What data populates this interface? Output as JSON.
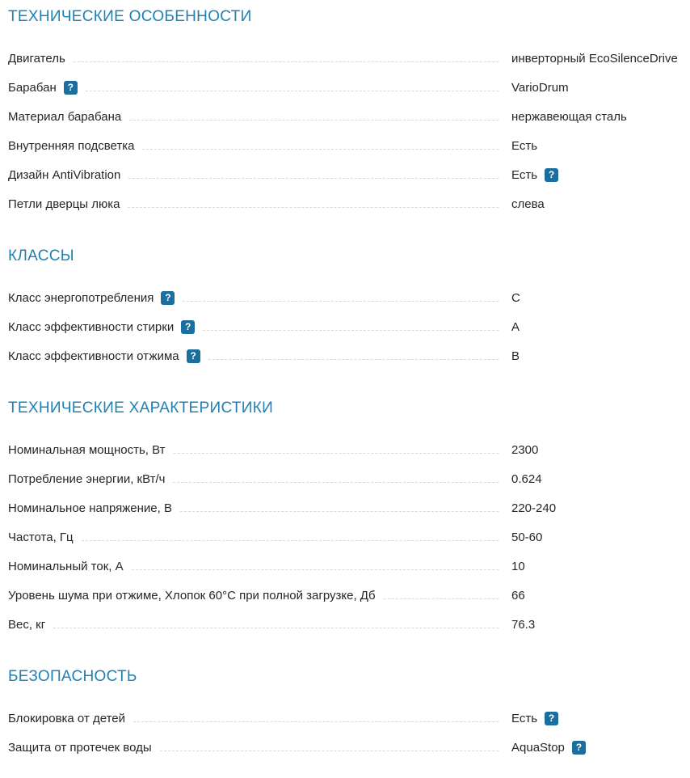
{
  "help_glyph": "?",
  "colors": {
    "heading_blue": "#2080b4",
    "help_icon_bg": "#1a6f9f",
    "text": "#262626",
    "leader_dash": "#d8d8d8"
  },
  "sections": [
    {
      "title": "ТЕХНИЧЕСКИЕ ОСОБЕННОСТИ",
      "rows": [
        {
          "label": "Двигатель",
          "label_help": false,
          "value": "инверторный EcoSilenceDrive",
          "value_help": false
        },
        {
          "label": "Барабан",
          "label_help": true,
          "value": "VarioDrum",
          "value_help": false
        },
        {
          "label": "Материал барабана",
          "label_help": false,
          "value": "нержавеющая сталь",
          "value_help": false
        },
        {
          "label": "Внутренняя подсветка",
          "label_help": false,
          "value": "Есть",
          "value_help": false
        },
        {
          "label": "Дизайн AntiVibration",
          "label_help": false,
          "value": "Есть",
          "value_help": true
        },
        {
          "label": "Петли дверцы люка",
          "label_help": false,
          "value": "слева",
          "value_help": false
        }
      ]
    },
    {
      "title": "КЛАССЫ",
      "rows": [
        {
          "label": "Класс энергопотребления",
          "label_help": true,
          "value": "C",
          "value_help": false
        },
        {
          "label": "Класс эффективности стирки",
          "label_help": true,
          "value": "A",
          "value_help": false
        },
        {
          "label": "Класс эффективности отжима",
          "label_help": true,
          "value": "B",
          "value_help": false
        }
      ]
    },
    {
      "title": "ТЕХНИЧЕСКИЕ ХАРАКТЕРИСТИКИ",
      "rows": [
        {
          "label": "Номинальная мощность, Вт",
          "label_help": false,
          "value": "2300",
          "value_help": false
        },
        {
          "label": "Потребление энергии, кВт/ч",
          "label_help": false,
          "value": "0.624",
          "value_help": false
        },
        {
          "label": "Номинальное напряжение, В",
          "label_help": false,
          "value": "220-240",
          "value_help": false
        },
        {
          "label": "Частота, Гц",
          "label_help": false,
          "value": "50-60",
          "value_help": false
        },
        {
          "label": "Номинальный ток, А",
          "label_help": false,
          "value": "10",
          "value_help": false
        },
        {
          "label": "Уровень шума при отжиме, Хлопок 60°C при полной загрузке, Дб",
          "label_help": false,
          "value": "66",
          "value_help": false
        },
        {
          "label": "Вес, кг",
          "label_help": false,
          "value": "76.3",
          "value_help": false
        }
      ]
    },
    {
      "title": "БЕЗОПАСНОСТЬ",
      "rows": [
        {
          "label": "Блокировка от детей",
          "label_help": false,
          "value": "Есть",
          "value_help": true
        },
        {
          "label": "Защита от протечек воды",
          "label_help": false,
          "value": "AquaStop",
          "value_help": true
        }
      ]
    }
  ]
}
